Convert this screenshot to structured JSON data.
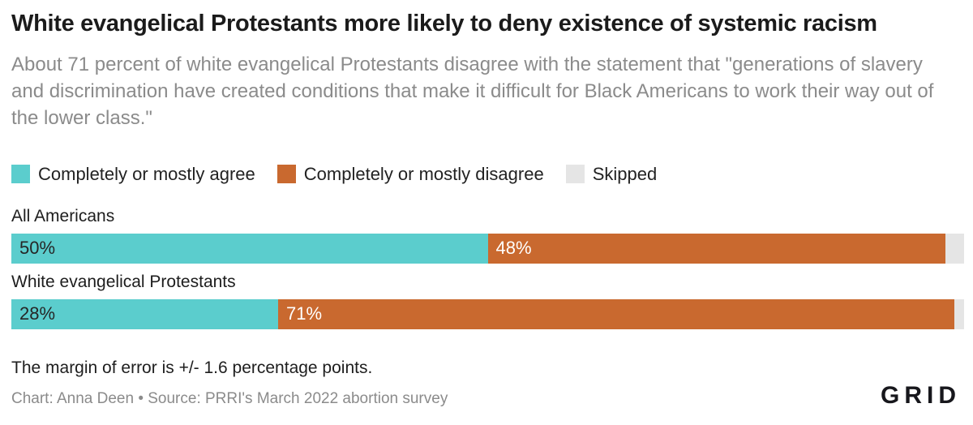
{
  "title": "White evangelical Protestants more likely to deny existence of systemic racism",
  "subtitle": "About 71 percent of white evangelical Protestants disagree with the statement that \"generations of slavery and discrimination have created conditions that make it difficult for Black Americans to work their way out of the lower class.\"",
  "legend": {
    "agree": "Completely or mostly agree",
    "disagree": "Completely or mostly disagree",
    "skipped": "Skipped"
  },
  "colors": {
    "agree": "#5bcdcd",
    "disagree": "#c9692f",
    "skipped": "#e5e5e5"
  },
  "chart_data": {
    "type": "bar",
    "orientation": "horizontal-stacked",
    "categories": [
      "All Americans",
      "White evangelical Protestants"
    ],
    "series": [
      {
        "name": "Completely or mostly agree",
        "values": [
          50,
          28
        ]
      },
      {
        "name": "Completely or mostly disagree",
        "values": [
          48,
          71
        ]
      },
      {
        "name": "Skipped",
        "values": [
          2,
          1
        ]
      }
    ],
    "value_suffix": "%",
    "xlim": [
      0,
      100
    ],
    "grid": false,
    "legend_position": "top"
  },
  "rows": [
    {
      "label": "All Americans",
      "agree_label": "50%",
      "agree_pct": 50,
      "disagree_label": "48%",
      "disagree_pct": 48,
      "skipped_pct": 2
    },
    {
      "label": "White evangelical Protestants",
      "agree_label": "28%",
      "agree_pct": 28,
      "disagree_label": "71%",
      "disagree_pct": 71,
      "skipped_pct": 1
    }
  ],
  "footer": {
    "note": "The margin of error is +/- 1.6 percentage points.",
    "credit": "Chart: Anna Deen • Source: PRRI's March 2022 abortion survey"
  },
  "logo_text": "GRID"
}
